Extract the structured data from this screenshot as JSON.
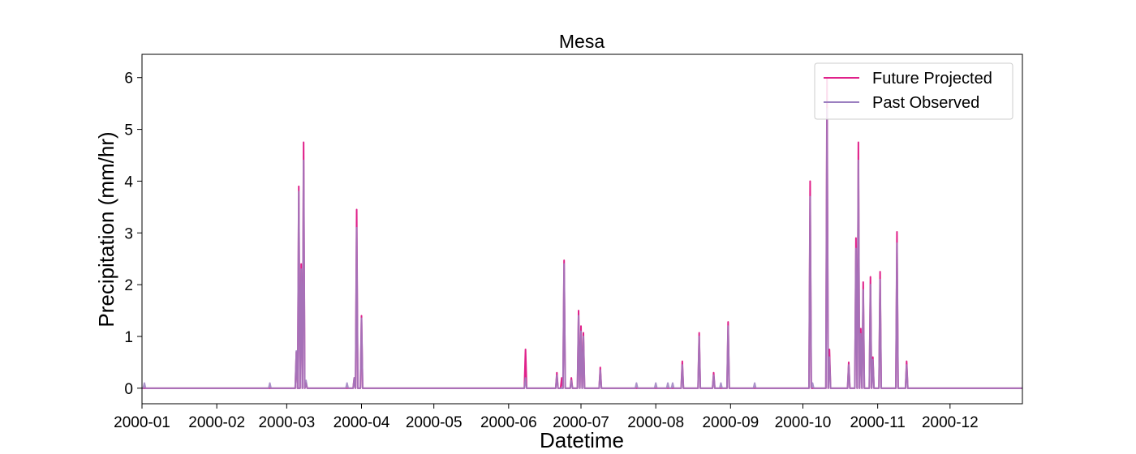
{
  "chart_data": {
    "type": "line",
    "title": "Mesa",
    "xlabel": "Datetime",
    "ylabel": "Precipitation (mm/hr)",
    "xlim": [
      "2000-01-01",
      "2000-12-31"
    ],
    "ylim": [
      -0.3,
      6.45
    ],
    "x_ticks": [
      "2000-01",
      "2000-02",
      "2000-03",
      "2000-04",
      "2000-05",
      "2000-06",
      "2000-07",
      "2000-08",
      "2000-09",
      "2000-10",
      "2000-11",
      "2000-12"
    ],
    "y_ticks": [
      0,
      1,
      2,
      3,
      4,
      5,
      6
    ],
    "grid": false,
    "legend_position": "top-right",
    "series": [
      {
        "name": "Future Projected",
        "color": "#e0218a",
        "points": [
          [
            "2000-03-05",
            0.7
          ],
          [
            "2000-03-06",
            3.6
          ],
          [
            "2000-03-06",
            3.9
          ],
          [
            "2000-03-07",
            2.4
          ],
          [
            "2000-03-08",
            4.75
          ],
          [
            "2000-03-09",
            0.1
          ],
          [
            "2000-03-29",
            0.2
          ],
          [
            "2000-03-30",
            3.45
          ],
          [
            "2000-04-01",
            1.4
          ],
          [
            "2000-06-08",
            0.75
          ],
          [
            "2000-06-21",
            0.3
          ],
          [
            "2000-06-23",
            0.2
          ],
          [
            "2000-06-24",
            2.47
          ],
          [
            "2000-06-27",
            0.2
          ],
          [
            "2000-06-30",
            1.5
          ],
          [
            "2000-07-01",
            1.2
          ],
          [
            "2000-07-02",
            1.07
          ],
          [
            "2000-07-09",
            0.4
          ],
          [
            "2000-08-12",
            0.52
          ],
          [
            "2000-08-19",
            1.07
          ],
          [
            "2000-08-25",
            0.3
          ],
          [
            "2000-08-31",
            1.28
          ],
          [
            "2000-10-04",
            4.0
          ],
          [
            "2000-10-11",
            6.0
          ],
          [
            "2000-10-12",
            0.75
          ],
          [
            "2000-10-20",
            0.5
          ],
          [
            "2000-10-23",
            2.9
          ],
          [
            "2000-10-24",
            4.75
          ],
          [
            "2000-10-25",
            1.15
          ],
          [
            "2000-10-26",
            2.05
          ],
          [
            "2000-10-29",
            2.15
          ],
          [
            "2000-10-30",
            0.6
          ],
          [
            "2000-11-02",
            2.25
          ],
          [
            "2000-11-09",
            3.02
          ],
          [
            "2000-11-13",
            0.52
          ]
        ]
      },
      {
        "name": "Past Observed",
        "color": "#9b7fc0",
        "points": [
          [
            "2000-01-02",
            0.1
          ],
          [
            "2000-02-23",
            0.1
          ],
          [
            "2000-03-05",
            0.72
          ],
          [
            "2000-03-06",
            3.55
          ],
          [
            "2000-03-06",
            3.8
          ],
          [
            "2000-03-07",
            2.3
          ],
          [
            "2000-03-08",
            4.4
          ],
          [
            "2000-03-09",
            0.15
          ],
          [
            "2000-03-26",
            0.1
          ],
          [
            "2000-03-29",
            0.2
          ],
          [
            "2000-03-30",
            3.1
          ],
          [
            "2000-04-01",
            1.35
          ],
          [
            "2000-06-08",
            0.2
          ],
          [
            "2000-06-21",
            0.25
          ],
          [
            "2000-06-24",
            2.4
          ],
          [
            "2000-06-27",
            0.15
          ],
          [
            "2000-06-30",
            1.4
          ],
          [
            "2000-07-01",
            1.1
          ],
          [
            "2000-07-02",
            1.0
          ],
          [
            "2000-07-09",
            0.35
          ],
          [
            "2000-07-24",
            0.1
          ],
          [
            "2000-08-01",
            0.1
          ],
          [
            "2000-08-06",
            0.1
          ],
          [
            "2000-08-08",
            0.1
          ],
          [
            "2000-08-12",
            0.45
          ],
          [
            "2000-08-19",
            1.0
          ],
          [
            "2000-08-25",
            0.25
          ],
          [
            "2000-08-28",
            0.1
          ],
          [
            "2000-08-31",
            1.2
          ],
          [
            "2000-09-11",
            0.1
          ],
          [
            "2000-10-04",
            3.7
          ],
          [
            "2000-10-05",
            0.1
          ],
          [
            "2000-10-11",
            5.4
          ],
          [
            "2000-10-12",
            0.6
          ],
          [
            "2000-10-20",
            0.45
          ],
          [
            "2000-10-23",
            2.7
          ],
          [
            "2000-10-24",
            4.4
          ],
          [
            "2000-10-25",
            1.05
          ],
          [
            "2000-10-26",
            1.9
          ],
          [
            "2000-10-29",
            2.0
          ],
          [
            "2000-10-30",
            0.55
          ],
          [
            "2000-11-02",
            2.1
          ],
          [
            "2000-11-09",
            2.8
          ],
          [
            "2000-11-13",
            0.45
          ]
        ]
      }
    ]
  }
}
